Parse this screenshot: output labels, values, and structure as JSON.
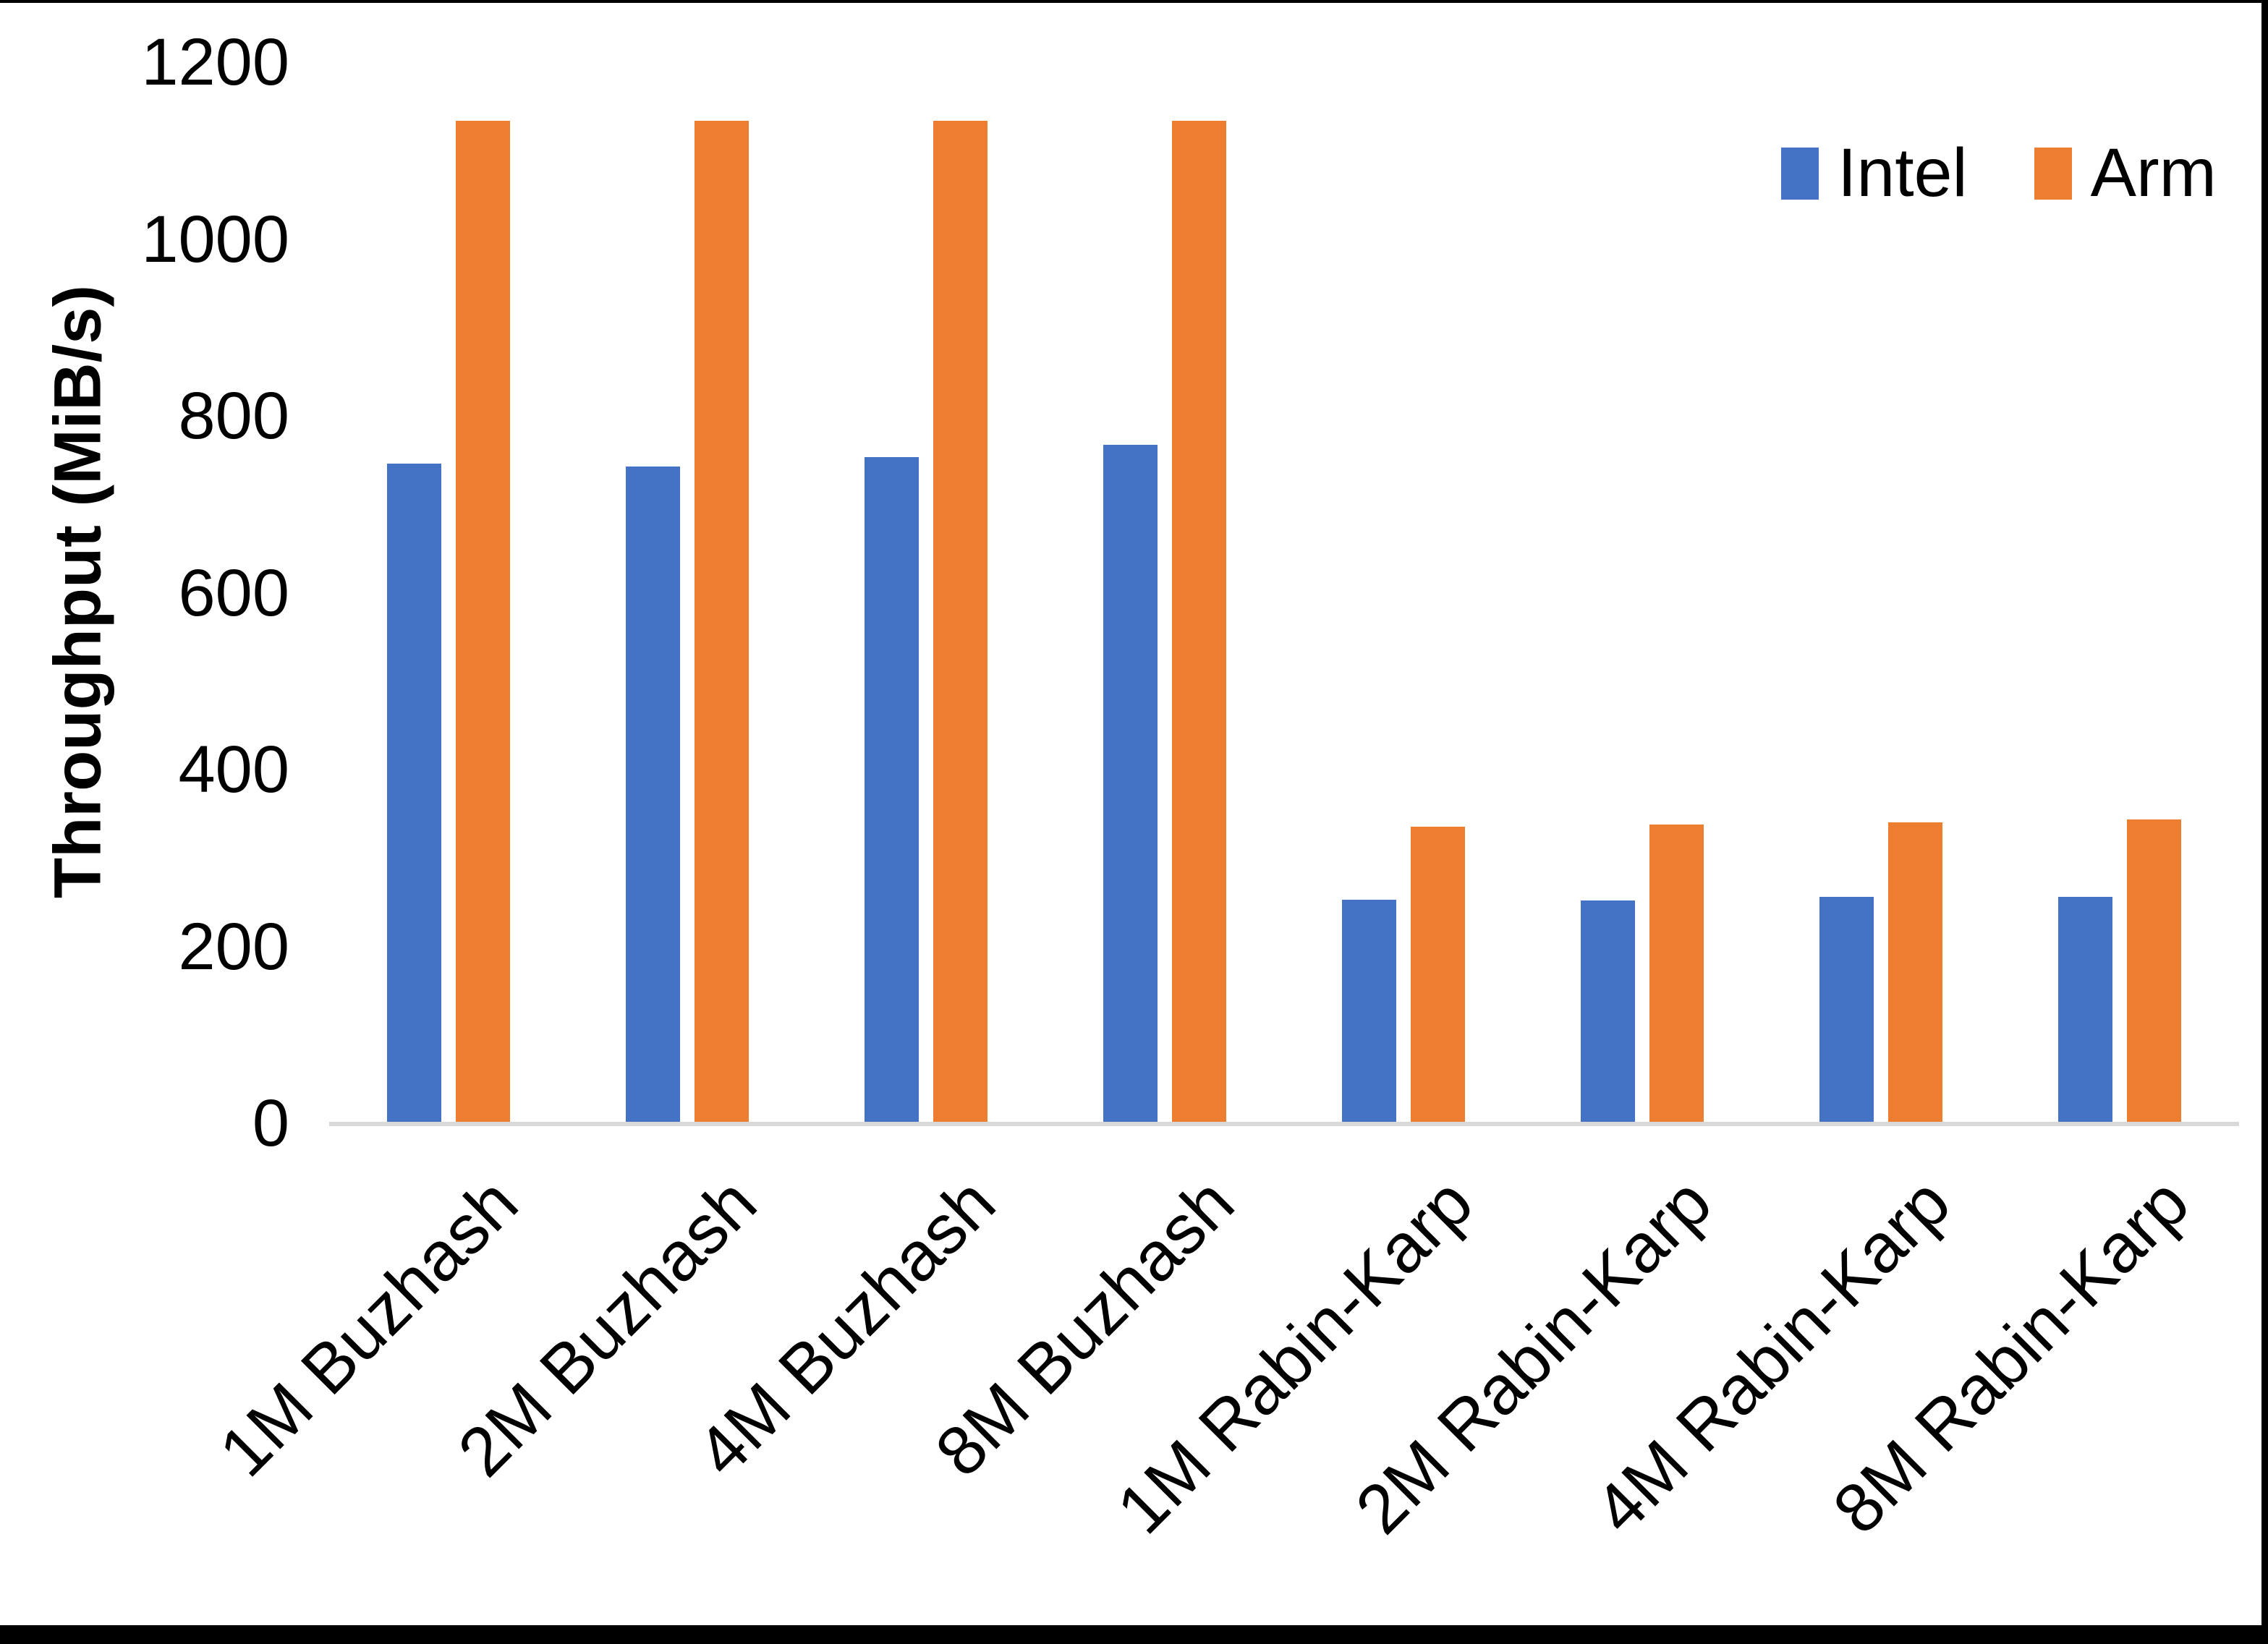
{
  "chart_data": {
    "type": "bar",
    "categories": [
      "1M Buzhash",
      "2M Buzhash",
      "4M Buzhash",
      "8M Buzhash",
      "1M Rabin-Karp",
      "2M Rabin-Karp",
      "4M Rabin-Karp",
      "8M Rabin-Karp"
    ],
    "series": [
      {
        "name": "Intel",
        "color": "#4472C4",
        "values": [
          744,
          741,
          752,
          766,
          251,
          250,
          254,
          254
        ]
      },
      {
        "name": "Arm",
        "color": "#ED7D31",
        "values": [
          1132,
          1132,
          1132,
          1132,
          334,
          336,
          339,
          342
        ]
      }
    ],
    "title": "",
    "xlabel": "",
    "ylabel": "Throughput (MiB/s)",
    "ylim": [
      0,
      1200
    ],
    "yticks": [
      0,
      200,
      400,
      600,
      800,
      1000,
      1200
    ],
    "grid": false,
    "legend_position": "top-right"
  },
  "legend": {
    "items": [
      {
        "label": "Intel",
        "color": "#4472C4"
      },
      {
        "label": "Arm",
        "color": "#ED7D31"
      }
    ]
  },
  "colors": {
    "background": "#ffffff",
    "axis_line": "#d9d9d9",
    "text": "#000000",
    "frame": "#000000"
  }
}
